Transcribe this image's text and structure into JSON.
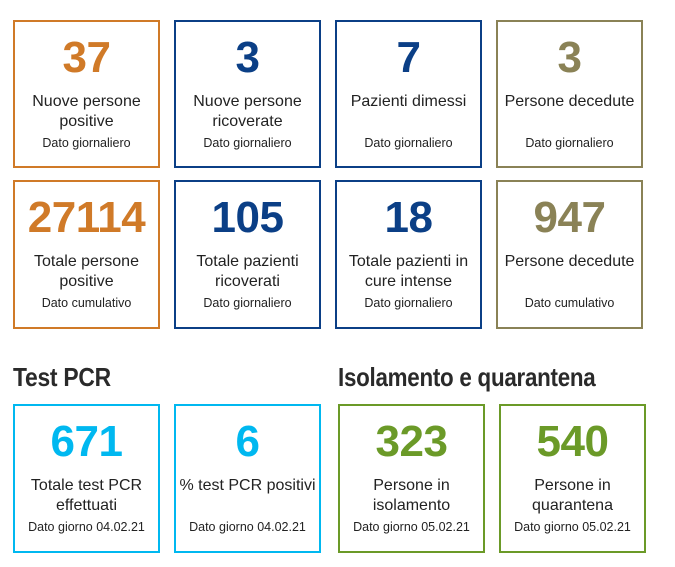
{
  "colors": {
    "orange": "#d07a28",
    "navy": "#0b3f86",
    "olive": "#8a8256",
    "cyan": "#00b8f0",
    "green": "#6b9a28"
  },
  "row1": [
    {
      "value": "37",
      "label": "Nuove persone positive",
      "sub": "Dato giornaliero",
      "color": "orange"
    },
    {
      "value": "3",
      "label": "Nuove persone ricoverate",
      "sub": "Dato giornaliero",
      "color": "navy"
    },
    {
      "value": "7",
      "label": "Pazienti dimessi",
      "sub": "Dato giornaliero",
      "color": "navy"
    },
    {
      "value": "3",
      "label": "Persone decedute",
      "sub": "Dato giornaliero",
      "color": "olive"
    }
  ],
  "row2": [
    {
      "value": "27114",
      "label": "Totale persone positive",
      "sub": "Dato cumulativo",
      "color": "orange"
    },
    {
      "value": "105",
      "label": "Totale pazienti ricoverati",
      "sub": "Dato giornaliero",
      "color": "navy"
    },
    {
      "value": "18",
      "label": "Totale pazienti in cure intense",
      "sub": "Dato giornaliero",
      "color": "navy"
    },
    {
      "value": "947",
      "label": "Persone decedute",
      "sub": "Dato cumulativo",
      "color": "olive"
    }
  ],
  "sections": {
    "pcr_title": "Test PCR",
    "isolation_title": "Isolamento e quarantena"
  },
  "row3": [
    {
      "value": "671",
      "label": "Totale test PCR effettuati",
      "sub": "Dato giorno 04.02.21",
      "color": "cyan"
    },
    {
      "value": "6",
      "label": "% test PCR positivi",
      "sub": "Dato giorno 04.02.21",
      "color": "cyan"
    },
    {
      "value": "323",
      "label": "Persone in isolamento",
      "sub": "Dato giorno 05.02.21",
      "color": "green"
    },
    {
      "value": "540",
      "label": "Persone in quarantena",
      "sub": "Dato giorno 05.02.21",
      "color": "green"
    }
  ]
}
